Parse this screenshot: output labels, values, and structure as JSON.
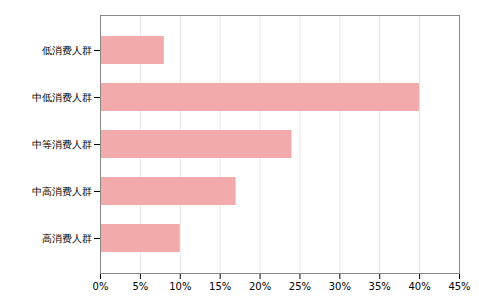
{
  "chart_data": {
    "type": "bar",
    "orientation": "horizontal",
    "categories": [
      "低消费人群",
      "中低消费人群",
      "中等消费人群",
      "中高消费人群",
      "高消费人群"
    ],
    "values": [
      0.08,
      0.4,
      0.24,
      0.17,
      0.1
    ],
    "color": "#f2aaaa",
    "xlim": [
      0,
      0.45
    ],
    "xticks": [
      {
        "value": 0.0,
        "label": "0%"
      },
      {
        "value": 0.05,
        "label": "5%"
      },
      {
        "value": 0.1,
        "label": "10%"
      },
      {
        "value": 0.15,
        "label": "15%"
      },
      {
        "value": 0.2,
        "label": "20%"
      },
      {
        "value": 0.25,
        "label": "25%"
      },
      {
        "value": 0.3,
        "label": "30%"
      },
      {
        "value": 0.35,
        "label": "35%"
      },
      {
        "value": 0.4,
        "label": "40%"
      },
      {
        "value": 0.45,
        "label": "45%"
      }
    ],
    "grid": true
  }
}
